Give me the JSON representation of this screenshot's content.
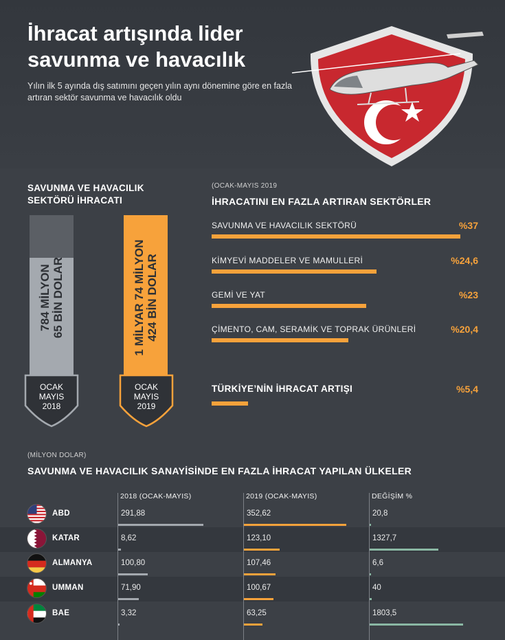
{
  "header": {
    "title": "İhracat artışında lider savunma ve havacılık",
    "subtitle": "Yılın ilk 5 ayında dış satımını geçen yılın aynı dönemine göre en fazla artıran sektör savunma ve havacılık oldu"
  },
  "left_section": {
    "title": "SAVUNMA VE HAVACILIK SEKTÖRÜ İHRACATI",
    "bars": [
      {
        "value_text": "784 MİLYON 65 BİN DOLAR",
        "value_line1": "784 MİLYON",
        "value_line2": "65 BİN DOLAR",
        "value_musd": 784.065,
        "badge_line1": "OCAK",
        "badge_line2": "MAYIS",
        "badge_line3": "2018",
        "color": "#a4a9af"
      },
      {
        "value_text": "1 MİLYAR 74 MİLYON 424 BİN DOLAR",
        "value_line1": "1 MİLYAR 74 MİLYON",
        "value_line2": "424 BİN DOLAR",
        "value_musd": 1074.424,
        "badge_line1": "OCAK",
        "badge_line2": "MAYIS",
        "badge_line3": "2019",
        "color": "#f7a23b"
      }
    ]
  },
  "right_section": {
    "subtitle": "(OCAK-MAYIS 2019",
    "title": "İHRACATINI EN FAZLA ARTIRAN SEKTÖRLER",
    "total": {
      "label": "TÜRKİYE’NİN İHRACAT ARTIŞI",
      "value_text": "%5,4",
      "value": 5.4
    }
  },
  "table": {
    "unit": "(MİLYON DOLAR)",
    "title": "SAVUNMA VE HAVACILIK SANAYİSİNDE EN FAZLA İHRACAT YAPILAN ÜLKELER",
    "headers": [
      "2018 (OCAK-MAYIS)",
      "2019 (OCAK-MAYIS)",
      "DEĞİŞİM %"
    ]
  },
  "chart_data": [
    {
      "type": "bar",
      "title": "SAVUNMA VE HAVACILIK SEKTÖRÜ İHRACATI",
      "categories": [
        "OCAK MAYIS 2018",
        "OCAK MAYIS 2019"
      ],
      "values": [
        784.065,
        1074.424
      ],
      "value_labels": [
        "784 MİLYON 65 BİN DOLAR",
        "1 MİLYAR 74 MİLYON 424 BİN DOLAR"
      ],
      "colors": [
        "#a4a9af",
        "#f7a23b"
      ]
    },
    {
      "type": "bar",
      "title": "İHRACATINI EN FAZLA ARTIRAN SEKTÖRLER",
      "categories": [
        "SAVUNMA VE HAVACILIK SEKTÖRÜ",
        "KİMYEVİ MADDELER VE MAMULLERİ",
        "GEMİ VE YAT",
        "ÇİMENTO, CAM, SERAMİK VE TOPRAK ÜRÜNLERİ"
      ],
      "values": [
        37,
        24.6,
        23,
        20.4
      ],
      "value_labels": [
        "%37",
        "%24,6",
        "%23",
        "%20,4"
      ],
      "xlim": [
        0,
        40
      ],
      "color": "#f7a23b"
    },
    {
      "type": "table",
      "title": "SAVUNMA VE HAVACILIK SANAYİSİNDE EN FAZLA İHRACAT YAPILAN ÜLKELER",
      "columns": [
        "2018 (OCAK-MAYIS)",
        "2019 (OCAK-MAYIS)",
        "DEĞİŞİM %"
      ],
      "rows": [
        {
          "country": "ABD",
          "flag": "usa-flag-icon",
          "v2018": 291.88,
          "v2019": 352.62,
          "change": 20.8,
          "t2018": "291,88",
          "t2019": "352,62",
          "tchange": "20,8"
        },
        {
          "country": "KATAR",
          "flag": "qatar-flag-icon",
          "v2018": 8.62,
          "v2019": 123.1,
          "change": 1327.7,
          "t2018": "8,62",
          "t2019": "123,10",
          "tchange": "1327,7"
        },
        {
          "country": "ALMANYA",
          "flag": "germany-flag-icon",
          "v2018": 100.8,
          "v2019": 107.46,
          "change": 6.6,
          "t2018": "100,80",
          "t2019": "107,46",
          "tchange": "6,6"
        },
        {
          "country": "UMMAN",
          "flag": "oman-flag-icon",
          "v2018": 71.9,
          "v2019": 100.67,
          "change": 40,
          "t2018": "71,90",
          "t2019": "100,67",
          "tchange": "40"
        },
        {
          "country": "BAE",
          "flag": "uae-flag-icon",
          "v2018": 3.32,
          "v2019": 63.25,
          "change": 1803.5,
          "t2018": "3,32",
          "t2019": "63,25",
          "tchange": "1803,5"
        }
      ],
      "bar_colors": [
        "#a4a9af",
        "#f7a23b",
        "#8ab8a4"
      ]
    }
  ],
  "colors": {
    "accent": "#f7a23b",
    "grey_bar": "#a4a9af",
    "change_bar": "#8ab8a4",
    "shield_red": "#c8282f"
  }
}
